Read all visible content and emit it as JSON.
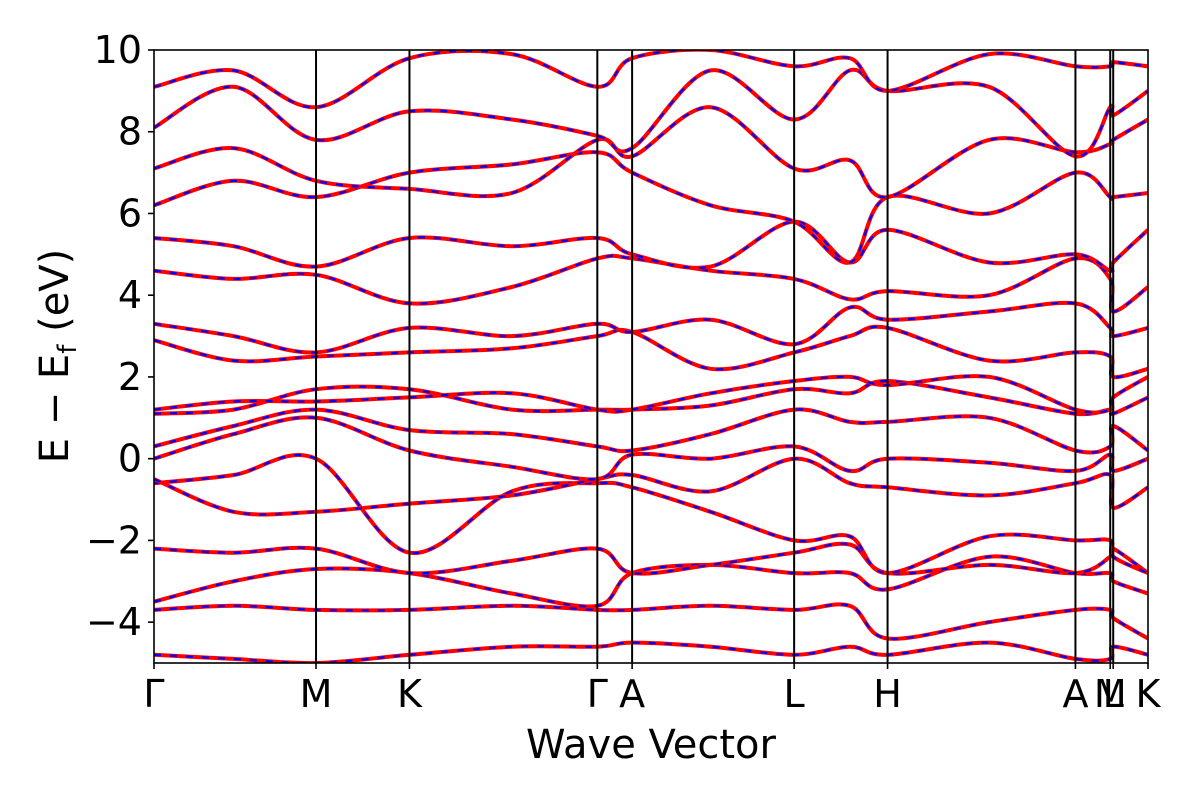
{
  "chart_data": {
    "type": "line",
    "title": "",
    "xlabel": "Wave Vector",
    "ylabel": {
      "lead": "E − E",
      "sub": "f",
      "tail": " (eV)"
    },
    "ylim": [
      -5,
      10
    ],
    "yticks": [
      {
        "value": 10,
        "label": "10"
      },
      {
        "value": 8,
        "label": "8"
      },
      {
        "value": 6,
        "label": "6"
      },
      {
        "value": 4,
        "label": "4"
      },
      {
        "value": 2,
        "label": "2"
      },
      {
        "value": 0,
        "label": "0"
      },
      {
        "value": -2,
        "label": "−2"
      },
      {
        "value": -4,
        "label": "−4"
      }
    ],
    "xlim": [
      0,
      100
    ],
    "kpoints": [
      {
        "label": "Γ",
        "x": 0
      },
      {
        "label": "M",
        "x": 16.3
      },
      {
        "label": "K",
        "x": 25.7
      },
      {
        "label": "Γ",
        "x": 44.6
      },
      {
        "label": "A",
        "x": 48.1
      },
      {
        "label": "L",
        "x": 64.4
      },
      {
        "label": "H",
        "x": 73.8
      },
      {
        "label": "A",
        "x": 92.7
      },
      {
        "label": "M",
        "x": 96.2
      },
      {
        "label": "L",
        "x": 96.5
      },
      {
        "label": "K",
        "x": 100
      }
    ],
    "series_styles": [
      {
        "color": "#ff0000",
        "style": "solid"
      },
      {
        "color": "#0000ff",
        "style": "dashed"
      }
    ],
    "bands": [
      [
        [
          0,
          -4.8
        ],
        [
          8,
          -4.9
        ],
        [
          16.3,
          -5.0
        ],
        [
          25.7,
          -4.8
        ],
        [
          36,
          -4.6
        ],
        [
          44.6,
          -4.6
        ],
        [
          48.1,
          -4.5
        ],
        [
          56,
          -4.6
        ],
        [
          64.4,
          -4.8
        ],
        [
          70,
          -4.6
        ],
        [
          73.8,
          -4.8
        ],
        [
          84,
          -4.5
        ],
        [
          92.7,
          -4.9
        ],
        [
          96.2,
          -4.9
        ],
        [
          96.5,
          -4.6
        ],
        [
          100,
          -4.8
        ]
      ],
      [
        [
          0,
          -3.7
        ],
        [
          8,
          -3.6
        ],
        [
          16.3,
          -3.7
        ],
        [
          25.7,
          -3.7
        ],
        [
          36,
          -3.6
        ],
        [
          44.6,
          -3.7
        ],
        [
          48.1,
          -3.7
        ],
        [
          56,
          -3.6
        ],
        [
          64.4,
          -3.7
        ],
        [
          70,
          -3.6
        ],
        [
          73.8,
          -4.4
        ],
        [
          84,
          -4.0
        ],
        [
          92.7,
          -3.7
        ],
        [
          96.2,
          -3.7
        ],
        [
          96.5,
          -3.9
        ],
        [
          100,
          -4.4
        ]
      ],
      [
        [
          0,
          -3.5
        ],
        [
          8,
          -3.0
        ],
        [
          16.3,
          -2.7
        ],
        [
          25.7,
          -2.8
        ],
        [
          36,
          -3.3
        ],
        [
          44.6,
          -3.6
        ],
        [
          48.1,
          -2.8
        ],
        [
          56,
          -2.6
        ],
        [
          64.4,
          -2.8
        ],
        [
          70,
          -2.8
        ],
        [
          73.8,
          -3.2
        ],
        [
          84,
          -2.4
        ],
        [
          92.7,
          -2.8
        ],
        [
          96.2,
          -2.8
        ],
        [
          96.5,
          -3.0
        ],
        [
          100,
          -3.3
        ]
      ],
      [
        [
          0,
          -2.2
        ],
        [
          8,
          -2.3
        ],
        [
          16.3,
          -2.2
        ],
        [
          25.7,
          -2.8
        ],
        [
          36,
          -2.5
        ],
        [
          44.6,
          -2.2
        ],
        [
          48.1,
          -2.8
        ],
        [
          56,
          -2.6
        ],
        [
          64.4,
          -2.3
        ],
        [
          70,
          -2.1
        ],
        [
          73.8,
          -2.8
        ],
        [
          84,
          -2.6
        ],
        [
          92.7,
          -2.8
        ],
        [
          96.2,
          -2.4
        ],
        [
          96.5,
          -2.2
        ],
        [
          100,
          -2.8
        ]
      ],
      [
        [
          0,
          -0.6
        ],
        [
          8,
          -0.4
        ],
        [
          16.3,
          0.0
        ],
        [
          25.7,
          -2.3
        ],
        [
          36,
          -0.8
        ],
        [
          44.6,
          -0.6
        ],
        [
          48.1,
          -0.7
        ],
        [
          56,
          -1.3
        ],
        [
          64.4,
          -2.0
        ],
        [
          70,
          -1.9
        ],
        [
          73.8,
          -2.8
        ],
        [
          84,
          -1.9
        ],
        [
          92.7,
          -2.0
        ],
        [
          96.2,
          -2.0
        ],
        [
          96.5,
          -2.4
        ],
        [
          100,
          -2.8
        ]
      ],
      [
        [
          0,
          -0.5
        ],
        [
          8,
          -1.3
        ],
        [
          16.3,
          -1.3
        ],
        [
          25.7,
          -1.1
        ],
        [
          36,
          -0.9
        ],
        [
          44.6,
          -0.5
        ],
        [
          48.1,
          -0.4
        ],
        [
          56,
          -0.8
        ],
        [
          64.4,
          0.0
        ],
        [
          70,
          -0.6
        ],
        [
          73.8,
          -0.7
        ],
        [
          84,
          -0.9
        ],
        [
          92.7,
          -0.6
        ],
        [
          96.2,
          -0.4
        ],
        [
          96.5,
          -1.2
        ],
        [
          100,
          -0.7
        ]
      ],
      [
        [
          0,
          0.0
        ],
        [
          8,
          0.6
        ],
        [
          16.3,
          1.0
        ],
        [
          25.7,
          0.2
        ],
        [
          36,
          -0.2
        ],
        [
          44.6,
          -0.5
        ],
        [
          48.1,
          0.1
        ],
        [
          56,
          0.0
        ],
        [
          64.4,
          0.3
        ],
        [
          70,
          -0.3
        ],
        [
          73.8,
          0.0
        ],
        [
          84,
          -0.1
        ],
        [
          92.7,
          -0.3
        ],
        [
          96.2,
          0.1
        ],
        [
          96.5,
          -0.3
        ],
        [
          100,
          0.0
        ]
      ],
      [
        [
          0,
          0.3
        ],
        [
          8,
          0.8
        ],
        [
          16.3,
          1.2
        ],
        [
          25.7,
          0.7
        ],
        [
          36,
          0.6
        ],
        [
          44.6,
          0.3
        ],
        [
          48.1,
          0.2
        ],
        [
          56,
          0.6
        ],
        [
          64.4,
          1.2
        ],
        [
          70,
          0.9
        ],
        [
          73.8,
          0.9
        ],
        [
          84,
          1.0
        ],
        [
          92.7,
          0.2
        ],
        [
          96.2,
          0.3
        ],
        [
          96.5,
          0.8
        ],
        [
          100,
          0.2
        ]
      ],
      [
        [
          0,
          1.1
        ],
        [
          8,
          1.2
        ],
        [
          16.3,
          1.7
        ],
        [
          25.7,
          1.7
        ],
        [
          36,
          1.2
        ],
        [
          44.6,
          1.2
        ],
        [
          48.1,
          1.2
        ],
        [
          56,
          1.3
        ],
        [
          64.4,
          1.7
        ],
        [
          70,
          1.6
        ],
        [
          73.8,
          1.9
        ],
        [
          84,
          1.5
        ],
        [
          92.7,
          1.1
        ],
        [
          96.2,
          1.2
        ],
        [
          96.5,
          1.1
        ],
        [
          100,
          1.5
        ]
      ],
      [
        [
          0,
          1.2
        ],
        [
          8,
          1.4
        ],
        [
          16.3,
          1.4
        ],
        [
          25.7,
          1.5
        ],
        [
          36,
          1.6
        ],
        [
          44.6,
          1.2
        ],
        [
          48.1,
          1.2
        ],
        [
          56,
          1.6
        ],
        [
          64.4,
          1.9
        ],
        [
          70,
          2.0
        ],
        [
          73.8,
          1.8
        ],
        [
          84,
          2.0
        ],
        [
          92.7,
          1.2
        ],
        [
          96.2,
          1.2
        ],
        [
          96.5,
          1.5
        ],
        [
          100,
          2.0
        ]
      ],
      [
        [
          0,
          2.9
        ],
        [
          8,
          2.4
        ],
        [
          16.3,
          2.5
        ],
        [
          25.7,
          2.6
        ],
        [
          36,
          2.7
        ],
        [
          44.6,
          3.0
        ],
        [
          48.1,
          3.1
        ],
        [
          56,
          2.2
        ],
        [
          64.4,
          2.6
        ],
        [
          70,
          3.0
        ],
        [
          73.8,
          3.2
        ],
        [
          84,
          2.4
        ],
        [
          92.7,
          2.6
        ],
        [
          96.2,
          2.5
        ],
        [
          96.5,
          2.0
        ],
        [
          100,
          2.2
        ]
      ],
      [
        [
          0,
          3.3
        ],
        [
          8,
          3.0
        ],
        [
          16.3,
          2.6
        ],
        [
          25.7,
          3.2
        ],
        [
          36,
          3.0
        ],
        [
          44.6,
          3.3
        ],
        [
          48.1,
          3.1
        ],
        [
          56,
          3.4
        ],
        [
          64.4,
          2.8
        ],
        [
          70,
          3.7
        ],
        [
          73.8,
          3.4
        ],
        [
          84,
          3.6
        ],
        [
          92.7,
          3.8
        ],
        [
          96.2,
          3.2
        ],
        [
          96.5,
          3.0
        ],
        [
          100,
          3.2
        ]
      ],
      [
        [
          0,
          4.6
        ],
        [
          8,
          4.4
        ],
        [
          16.3,
          4.5
        ],
        [
          25.7,
          3.8
        ],
        [
          36,
          4.2
        ],
        [
          44.6,
          4.9
        ],
        [
          48.1,
          4.9
        ],
        [
          56,
          4.6
        ],
        [
          64.4,
          4.4
        ],
        [
          70,
          3.9
        ],
        [
          73.8,
          4.1
        ],
        [
          84,
          4.0
        ],
        [
          92.7,
          4.9
        ],
        [
          96.2,
          4.4
        ],
        [
          96.5,
          3.6
        ],
        [
          100,
          4.2
        ]
      ],
      [
        [
          0,
          5.4
        ],
        [
          8,
          5.2
        ],
        [
          16.3,
          4.7
        ],
        [
          25.7,
          5.4
        ],
        [
          36,
          5.2
        ],
        [
          44.6,
          5.4
        ],
        [
          48.1,
          5.0
        ],
        [
          56,
          4.7
        ],
        [
          64.4,
          5.8
        ],
        [
          70,
          4.8
        ],
        [
          73.8,
          5.6
        ],
        [
          84,
          4.8
        ],
        [
          92.7,
          5.0
        ],
        [
          96.2,
          4.6
        ],
        [
          96.5,
          4.8
        ],
        [
          100,
          5.6
        ]
      ],
      [
        [
          0,
          6.2
        ],
        [
          8,
          6.8
        ],
        [
          16.3,
          6.4
        ],
        [
          25.7,
          7.0
        ],
        [
          36,
          7.2
        ],
        [
          44.6,
          7.5
        ],
        [
          48.1,
          7.0
        ],
        [
          56,
          6.2
        ],
        [
          64.4,
          5.8
        ],
        [
          70,
          4.8
        ],
        [
          73.8,
          6.4
        ],
        [
          84,
          6.0
        ],
        [
          92.7,
          7.0
        ],
        [
          96.2,
          6.4
        ],
        [
          96.5,
          6.4
        ],
        [
          100,
          6.5
        ]
      ],
      [
        [
          0,
          7.1
        ],
        [
          8,
          7.6
        ],
        [
          16.3,
          6.8
        ],
        [
          25.7,
          6.6
        ],
        [
          36,
          6.5
        ],
        [
          44.6,
          7.8
        ],
        [
          48.1,
          7.4
        ],
        [
          56,
          8.6
        ],
        [
          64.4,
          7.1
        ],
        [
          70,
          7.3
        ],
        [
          73.8,
          6.4
        ],
        [
          84,
          7.8
        ],
        [
          92.7,
          7.5
        ],
        [
          96.2,
          7.7
        ],
        [
          96.5,
          7.8
        ],
        [
          100,
          8.3
        ]
      ],
      [
        [
          0,
          8.1
        ],
        [
          8,
          9.1
        ],
        [
          16.3,
          7.8
        ],
        [
          25.7,
          8.5
        ],
        [
          36,
          8.3
        ],
        [
          44.6,
          7.9
        ],
        [
          48.1,
          7.6
        ],
        [
          56,
          9.5
        ],
        [
          64.4,
          8.3
        ],
        [
          70,
          9.5
        ],
        [
          73.8,
          9.0
        ],
        [
          84,
          9.1
        ],
        [
          92.7,
          7.4
        ],
        [
          96.2,
          8.6
        ],
        [
          96.5,
          8.4
        ],
        [
          100,
          9.0
        ]
      ],
      [
        [
          0,
          9.1
        ],
        [
          8,
          9.5
        ],
        [
          16.3,
          8.6
        ],
        [
          25.7,
          9.8
        ],
        [
          36,
          9.9
        ],
        [
          44.6,
          9.1
        ],
        [
          48.1,
          9.8
        ],
        [
          56,
          10.0
        ],
        [
          64.4,
          9.6
        ],
        [
          70,
          9.8
        ],
        [
          73.8,
          9.0
        ],
        [
          84,
          9.9
        ],
        [
          92.7,
          9.6
        ],
        [
          96.2,
          9.6
        ],
        [
          96.5,
          9.7
        ],
        [
          100,
          9.6
        ]
      ]
    ]
  }
}
